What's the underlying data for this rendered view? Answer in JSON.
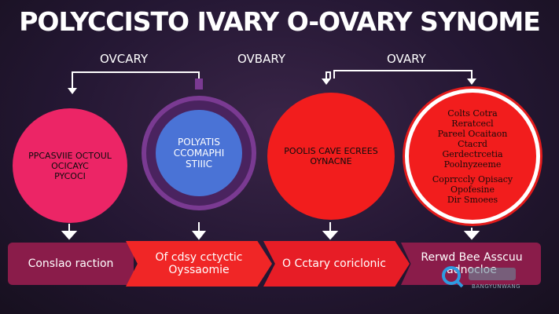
{
  "title": "POLYCCISTO IVARY O-OVARY SYNOME",
  "top_labels": [
    "OVCARY",
    "OVBARY",
    "OVARY"
  ],
  "circles": {
    "c1": [
      "PPCASVIIE OCTOUL",
      "OCICAYC",
      "PYCOCI"
    ],
    "c2": [
      "POLYATIS",
      "CCOMAPHI",
      "STIIIC"
    ],
    "c3": [
      "POOLIS CAVE ECREES",
      "OYNACNE"
    ],
    "c4": [
      "Colts Cotra",
      "Reratcecl",
      "Pareel Ocaitaon",
      "Ctacrd",
      "Gerdectrcetia",
      "Poolnyzeeme",
      "Coprrccly Opisacy",
      "Opofesine",
      "Dir Smoees"
    ]
  },
  "bands": {
    "b1": [
      "Conslao raction"
    ],
    "b2": [
      "Of cdsy cctyctic",
      "Oyssaomie"
    ],
    "b3": [
      "O Cctary coriclonic"
    ],
    "b4": [
      "Rerwd Bee Asscuu",
      "adnocloe"
    ]
  },
  "watermark": {
    "text": "BANGYUNWANG"
  },
  "colors": {
    "pink": "#ec2566",
    "red": "#f21d1d",
    "purple": "#4a235f",
    "blue": "#4a73d6",
    "maroon": "#8a1c4a"
  }
}
